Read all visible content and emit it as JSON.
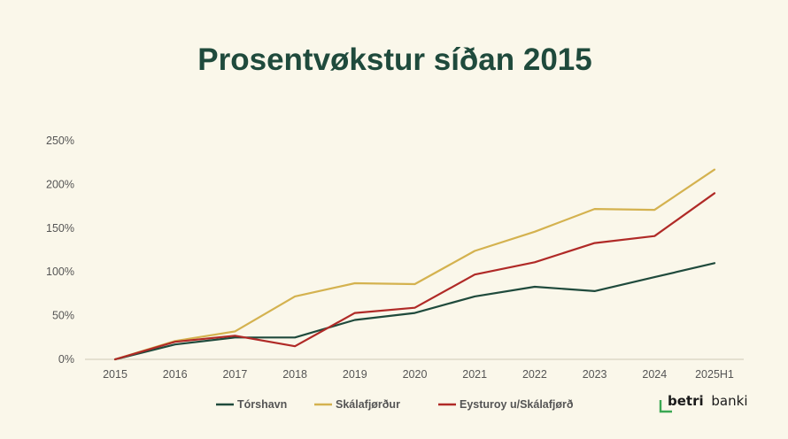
{
  "chart_data": {
    "type": "line",
    "title": "Prosentvøkstur síðan 2015",
    "xlabel": "",
    "ylabel": "",
    "categories": [
      "2015",
      "2016",
      "2017",
      "2018",
      "2019",
      "2020",
      "2021",
      "2022",
      "2023",
      "2024",
      "2025H1"
    ],
    "y_ticks": [
      0,
      50,
      100,
      150,
      200,
      250
    ],
    "y_tick_labels": [
      "0%",
      "50%",
      "100%",
      "150%",
      "200%",
      "250%"
    ],
    "ylim": [
      0,
      250
    ],
    "grid": false,
    "legend_position": "bottom",
    "series": [
      {
        "name": "Tórshavn",
        "color": "#1f4a3c",
        "values": [
          0,
          17,
          25,
          25,
          45,
          53,
          72,
          83,
          78,
          94,
          110
        ]
      },
      {
        "name": "Skálafjørður",
        "color": "#d4b24f",
        "values": [
          0,
          21,
          32,
          72,
          87,
          86,
          124,
          146,
          172,
          171,
          217
        ]
      },
      {
        "name": "Eysturoy u/Skálafjørð",
        "color": "#b02a27",
        "values": [
          0,
          20,
          27,
          15,
          53,
          59,
          97,
          111,
          133,
          141,
          190
        ]
      }
    ]
  },
  "logo": {
    "name": "betri banki",
    "word1": "betri",
    "word2": "banki",
    "accent_color": "#3aa853"
  }
}
